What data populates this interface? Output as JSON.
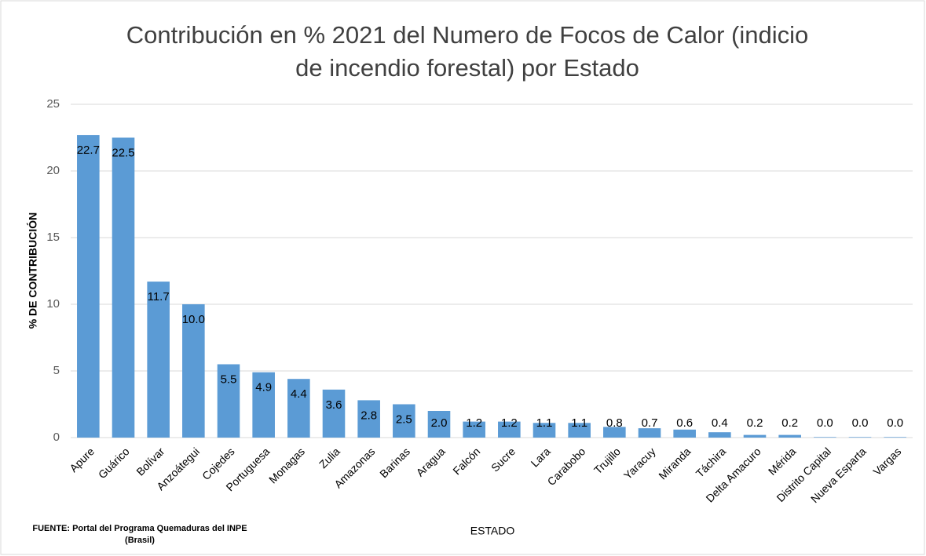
{
  "chart_data": {
    "type": "bar",
    "title": [
      "Contribución  en %  2021  del Numero de Focos de Calor (indicio",
      "de incendio forestal) por Estado"
    ],
    "x_label": "ESTADO",
    "y_label": "% DE CONTRIBUCIÓN",
    "source": [
      "FUENTE:  Portal del Programa Quemaduras del INPE",
      "(Brasil)"
    ],
    "categories": [
      "Apure",
      "Guárico",
      "Bolívar",
      "Anzoátegui",
      "Cojedes",
      "Portuguesa",
      "Monagas",
      "Zulia",
      "Amazonas",
      "Barinas",
      "Aragua",
      "Falcón",
      "Sucre",
      "Lara",
      "Carabobo",
      "Trujillo",
      "Yaracuy",
      "Miranda",
      "Táchira",
      "Delta Amacuro",
      "Mérida",
      "Distrito Capital",
      "Nueva Esparta",
      "Vargas"
    ],
    "values": [
      22.7,
      22.5,
      11.7,
      10.0,
      5.5,
      4.9,
      4.4,
      3.6,
      2.8,
      2.5,
      2.0,
      1.2,
      1.2,
      1.1,
      1.1,
      0.8,
      0.7,
      0.6,
      0.4,
      0.2,
      0.2,
      0.04,
      0.04,
      0.04
    ],
    "value_labels": [
      "22.7",
      "22.5",
      "11.7",
      "10.0",
      "5.5",
      "4.9",
      "4.4",
      "3.6",
      "2.8",
      "2.5",
      "2.0",
      "1.2",
      "1.2",
      "1.1",
      "1.1",
      "0.8",
      "0.7",
      "0.6",
      "0.4",
      "0.2",
      "0.2",
      "0.0",
      "0.0",
      "0.0"
    ],
    "color": "#5b9bd5",
    "ylim": [
      0,
      25
    ],
    "yticks": [
      0,
      5,
      10,
      15,
      20,
      25
    ],
    "grid": true
  }
}
